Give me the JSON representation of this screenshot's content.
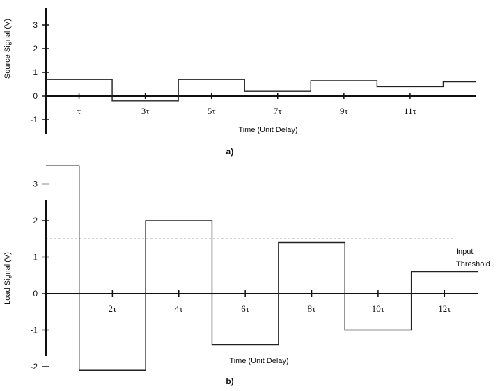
{
  "chart_data": [
    {
      "type": "line",
      "panel_label": "a)",
      "xlabel": "Time (Unit Delay)",
      "ylabel": "Source Signal (V)",
      "xlim": [
        0,
        13
      ],
      "ylim": [
        -1,
        3
      ],
      "yticks": [
        3,
        2,
        1,
        0,
        -1
      ],
      "xticks": [
        {
          "x": 1,
          "label": "τ"
        },
        {
          "x": 3,
          "label": "3τ"
        },
        {
          "x": 5,
          "label": "5τ"
        },
        {
          "x": 7,
          "label": "7τ"
        },
        {
          "x": 9,
          "label": "9τ"
        },
        {
          "x": 11,
          "label": "11τ"
        }
      ],
      "series": [
        {
          "step": "post",
          "x": [
            0,
            2,
            4,
            6,
            8,
            10,
            12,
            13
          ],
          "y": [
            0.7,
            -0.2,
            0.7,
            0.2,
            0.65,
            0.4,
            0.6,
            0.6
          ]
        }
      ]
    },
    {
      "type": "line",
      "panel_label": "b)",
      "xlabel": "Time (Unit Delay)",
      "ylabel": "Load Signal (V)",
      "xlim": [
        0,
        13
      ],
      "ylim": [
        -2.5,
        3.5
      ],
      "yticks": [
        3,
        2,
        1,
        0,
        -1,
        -2
      ],
      "xticks": [
        {
          "x": 2,
          "label": "2τ"
        },
        {
          "x": 4,
          "label": "4τ"
        },
        {
          "x": 6,
          "label": "6τ"
        },
        {
          "x": 8,
          "label": "8τ"
        },
        {
          "x": 10,
          "label": "10τ"
        },
        {
          "x": 12,
          "label": "12τ"
        }
      ],
      "threshold": {
        "y": 1.5,
        "label_line1": "Input",
        "label_line2": "Threshold"
      },
      "series": [
        {
          "step": "post",
          "x": [
            0,
            1,
            3,
            5,
            7,
            9,
            11,
            13
          ],
          "y": [
            3.5,
            -2.1,
            2.0,
            -1.4,
            1.4,
            -1.0,
            0.6,
            0.6
          ]
        }
      ]
    }
  ]
}
